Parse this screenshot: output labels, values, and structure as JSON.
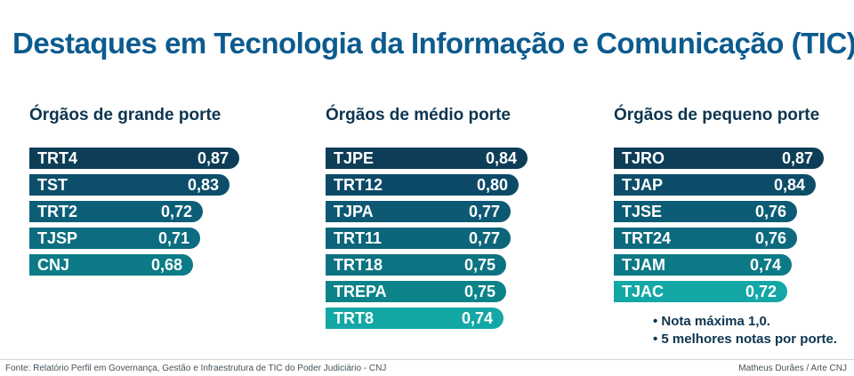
{
  "title": "Destaques em Tecnologia da Informação e Comunicação (TIC)",
  "chart_data": [
    {
      "type": "bar",
      "orientation": "horizontal",
      "title": "Órgãos de grande porte",
      "categories": [
        "TRT4",
        "TST",
        "TRT2",
        "TJSP",
        "CNJ"
      ],
      "values": [
        0.87,
        0.83,
        0.72,
        0.71,
        0.68
      ],
      "value_labels": [
        "0,87",
        "0,83",
        "0,72",
        "0,71",
        "0,68"
      ],
      "colors": [
        "#0d3d57",
        "#0d4f6b",
        "#0d5f78",
        "#0d6c80",
        "#0c7b87"
      ]
    },
    {
      "type": "bar",
      "orientation": "horizontal",
      "title": "Órgãos de médio porte",
      "categories": [
        "TJPE",
        "TRT12",
        "TJPA",
        "TRT11",
        "TRT18",
        "TREPA",
        "TRT8"
      ],
      "values": [
        0.84,
        0.8,
        0.77,
        0.77,
        0.75,
        0.75,
        0.74
      ],
      "value_labels": [
        "0,84",
        "0,80",
        "0,77",
        "0,77",
        "0,75",
        "0,75",
        "0,74"
      ],
      "colors": [
        "#0d3d57",
        "#0d4a67",
        "#0d5872",
        "#0d657b",
        "#0c7382",
        "#0b8389",
        "#13a7a6"
      ]
    },
    {
      "type": "bar",
      "orientation": "horizontal",
      "title": "Órgãos de pequeno porte",
      "categories": [
        "TJRO",
        "TJAP",
        "TJSE",
        "TRT24",
        "TJAM",
        "TJAC"
      ],
      "values": [
        0.87,
        0.84,
        0.76,
        0.76,
        0.74,
        0.72
      ],
      "value_labels": [
        "0,87",
        "0,84",
        "0,76",
        "0,76",
        "0,74",
        "0,72"
      ],
      "colors": [
        "#0d3d57",
        "#0d4d69",
        "#0d5c75",
        "#0d6a7e",
        "#0c7a86",
        "#13a7a6"
      ]
    }
  ],
  "notes": [
    "• Nota máxima 1,0.",
    "• 5 melhores notas por porte."
  ],
  "footer": {
    "source": "Fonte: Relatório Perfil em Governança, Gestão e Infraestrutura de TIC do Poder Judiciário - CNJ",
    "credit": "Matheus Durães / Arte CNJ"
  }
}
